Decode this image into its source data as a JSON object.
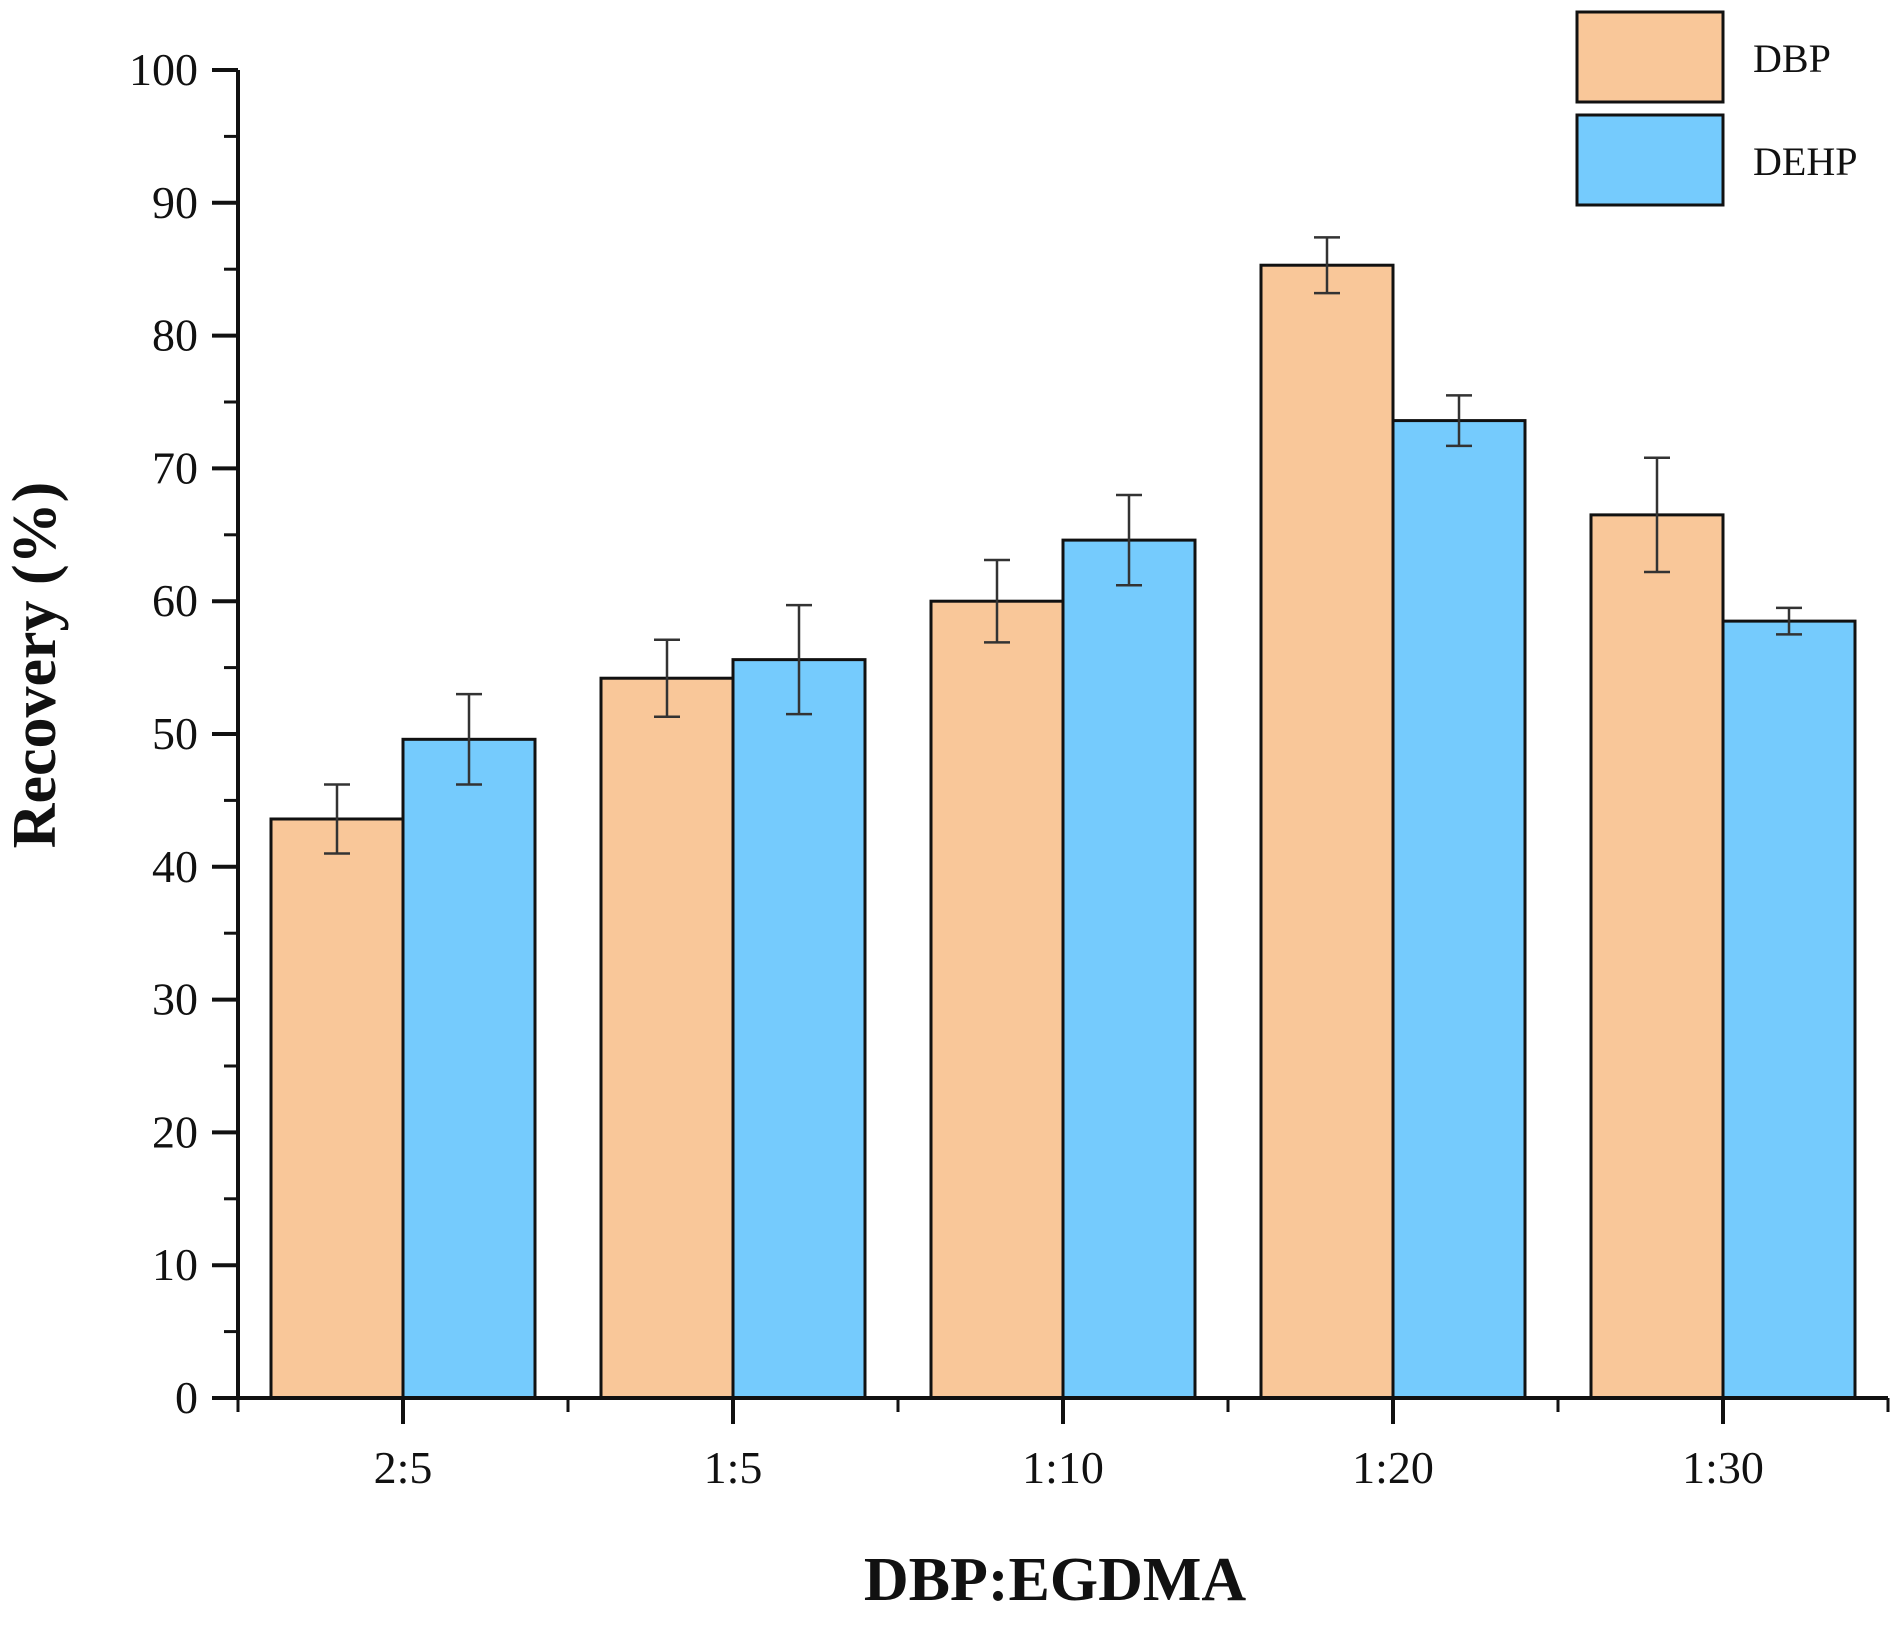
{
  "chart_data": {
    "type": "bar",
    "title": "",
    "xlabel": "DBP:EGDMA",
    "ylabel": "Recovery (%)",
    "categories": [
      "2:5",
      "1:5",
      "1:10",
      "1:20",
      "1:30"
    ],
    "series": [
      {
        "name": "DBP",
        "color": "#f9c799",
        "values": [
          43.6,
          54.2,
          60.0,
          85.3,
          66.5
        ],
        "errors": [
          2.6,
          2.9,
          3.1,
          2.1,
          4.3
        ]
      },
      {
        "name": "DEHP",
        "color": "#75cbfd",
        "values": [
          49.6,
          55.6,
          64.6,
          73.6,
          58.5
        ],
        "errors": [
          3.4,
          4.1,
          3.4,
          1.9,
          1.0
        ]
      }
    ],
    "ylim": [
      0,
      100
    ],
    "yticks": [
      0,
      10,
      20,
      30,
      40,
      50,
      60,
      70,
      80,
      90,
      100
    ],
    "grid": false,
    "legend_position": "top-right"
  }
}
